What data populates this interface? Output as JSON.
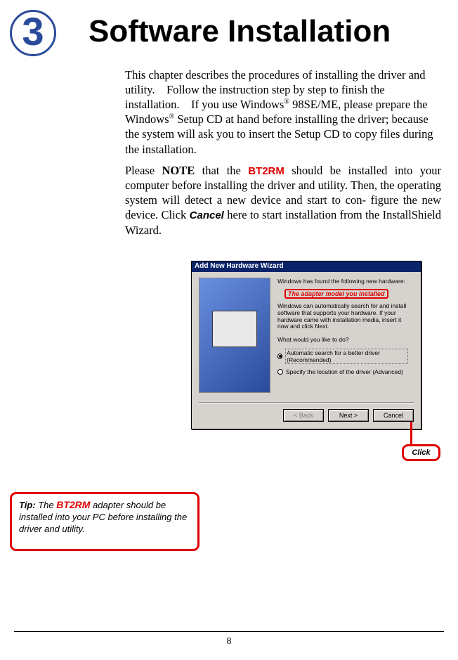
{
  "chapter_number": "3",
  "title": "Software Installation",
  "intro": "This chapter describes the procedures of installing the driver and utility.    Follow the instruction step by step to finish the installation.    If you use Windows® 98SE/ME, please prepare the Windows® Setup CD at hand before installing the driver; because the system will ask you to insert the Setup CD to copy files during the installation.",
  "note_prefix": "Please ",
  "note_label": "NOTE",
  "note_mid1": " that the ",
  "bt2rm": "BT2RM",
  "note_mid2": " should be installed into your  computer  before  installing  the  driver  and  utility. Then, the operating system will detect a new device and start to  con-  figure  the  new  device.    Click ",
  "cancel_word": "Cancel",
  "note_end": " here to start installation from the InstallShield Wizard.",
  "wizard": {
    "title": "Add New Hardware Wizard",
    "line1": "Windows has found the following new hardware:",
    "adapter_label": "The adapter model you installed",
    "para": "Windows can automatically search for and install software that supports your hardware. If your hardware came with installation media, insert it now and click Next.",
    "question": "What would you like to do?",
    "opt1": "Automatic search for a better driver (Recommended)",
    "opt2": "Specify the location of the driver (Advanced)",
    "btn_back": "< Back",
    "btn_next": "Next >",
    "btn_cancel": "Cancel"
  },
  "click_label": "Click",
  "tip_prefix": "Tip:",
  "tip_mid1": "  The ",
  "tip_mid2": " adapter should be installed into your PC before installing the driver and utility.",
  "page_number": "8",
  "colors": {
    "accent_red": "#e00000",
    "badge_blue": "#2a4b9a"
  }
}
